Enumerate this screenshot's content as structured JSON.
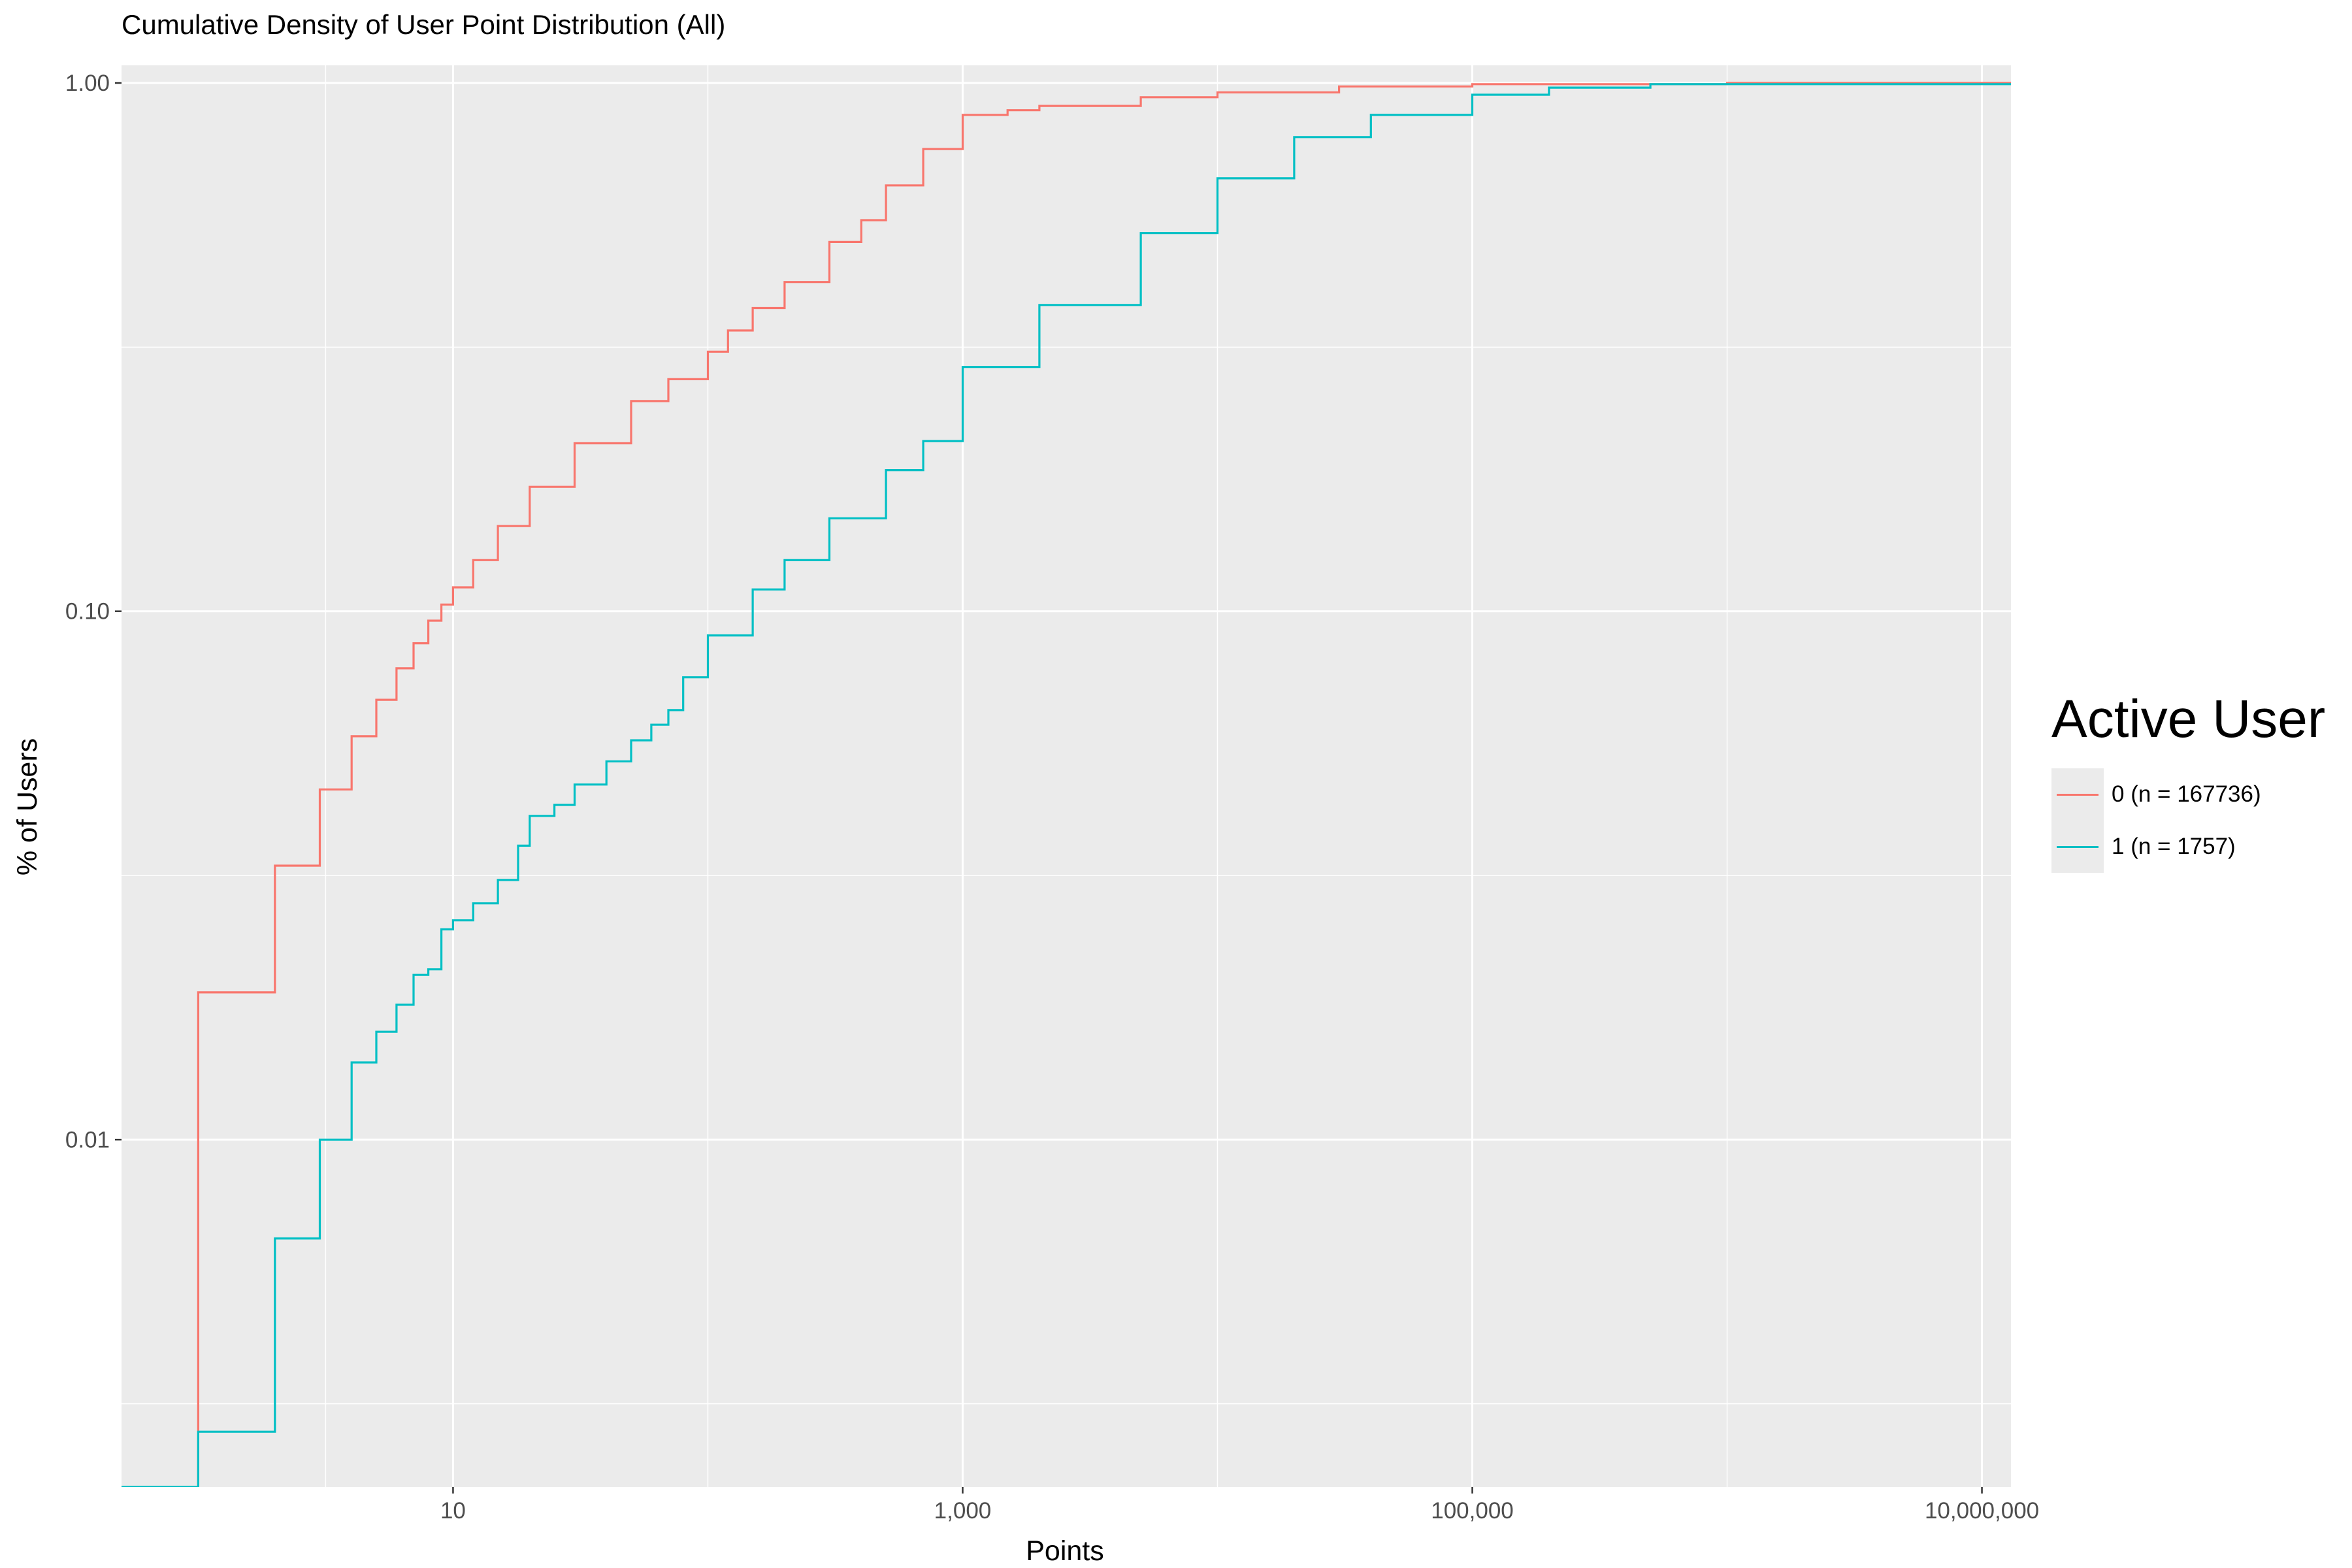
{
  "chart_data": {
    "type": "line",
    "title": "Cumulative Density of User Point Distribution (All)",
    "xlabel": "Points",
    "ylabel": "% of Users",
    "x_scale": "log10",
    "y_scale": "log10",
    "xlim": [
      0.5,
      13000000
    ],
    "ylim": [
      0.0022,
      1.08
    ],
    "x_ticks": [
      {
        "value": 10,
        "label": "10"
      },
      {
        "value": 1000,
        "label": "1,000"
      },
      {
        "value": 100000,
        "label": "100,000"
      },
      {
        "value": 10000000,
        "label": "10,000,000"
      }
    ],
    "y_ticks": [
      {
        "value": 0.01,
        "label": "0.01"
      },
      {
        "value": 0.1,
        "label": "0.10"
      },
      {
        "value": 1,
        "label": "1.00"
      }
    ],
    "grid": true,
    "legend": {
      "title": "Active User",
      "position": "right"
    },
    "series": [
      {
        "name": "0 (n = 167736)",
        "color": "#F8766D",
        "step": true,
        "points": [
          [
            1,
            0.0022
          ],
          [
            1,
            0.019
          ],
          [
            2,
            0.019
          ],
          [
            2,
            0.033
          ],
          [
            3,
            0.033
          ],
          [
            3,
            0.046
          ],
          [
            4,
            0.046
          ],
          [
            4,
            0.058
          ],
          [
            5,
            0.058
          ],
          [
            5,
            0.068
          ],
          [
            6,
            0.068
          ],
          [
            6,
            0.078
          ],
          [
            7,
            0.078
          ],
          [
            7,
            0.087
          ],
          [
            8,
            0.087
          ],
          [
            8,
            0.096
          ],
          [
            9,
            0.096
          ],
          [
            9,
            0.103
          ],
          [
            10,
            0.103
          ],
          [
            10,
            0.111
          ],
          [
            12,
            0.125
          ],
          [
            15,
            0.145
          ],
          [
            20,
            0.172
          ],
          [
            30,
            0.208
          ],
          [
            50,
            0.25
          ],
          [
            70,
            0.275
          ],
          [
            100,
            0.31
          ],
          [
            120,
            0.34
          ],
          [
            150,
            0.375
          ],
          [
            200,
            0.42
          ],
          [
            300,
            0.5
          ],
          [
            400,
            0.55
          ],
          [
            500,
            0.64
          ],
          [
            700,
            0.75
          ],
          [
            1000,
            0.87
          ],
          [
            1500,
            0.888
          ],
          [
            2000,
            0.905
          ],
          [
            5000,
            0.94
          ],
          [
            10000,
            0.96
          ],
          [
            30000,
            0.985
          ],
          [
            100000,
            0.995
          ],
          [
            1000000,
            1.0
          ],
          [
            13000000,
            1.0
          ]
        ]
      },
      {
        "name": "1 (n = 1757)",
        "color": "#00BFC4",
        "step": true,
        "points": [
          [
            0.5,
            0.0022
          ],
          [
            1,
            0.0022
          ],
          [
            1,
            0.0028
          ],
          [
            2,
            0.0028
          ],
          [
            2,
            0.0065
          ],
          [
            3,
            0.0065
          ],
          [
            3,
            0.01
          ],
          [
            4,
            0.01
          ],
          [
            4,
            0.014
          ],
          [
            5,
            0.014
          ],
          [
            5,
            0.016
          ],
          [
            6,
            0.016
          ],
          [
            6,
            0.018
          ],
          [
            7,
            0.018
          ],
          [
            7,
            0.0205
          ],
          [
            8,
            0.0205
          ],
          [
            8,
            0.021
          ],
          [
            9,
            0.021
          ],
          [
            9,
            0.025
          ],
          [
            10,
            0.025
          ],
          [
            10,
            0.026
          ],
          [
            12,
            0.028
          ],
          [
            15,
            0.031
          ],
          [
            18,
            0.036
          ],
          [
            20,
            0.041
          ],
          [
            25,
            0.043
          ],
          [
            30,
            0.047
          ],
          [
            40,
            0.052
          ],
          [
            50,
            0.057
          ],
          [
            60,
            0.061
          ],
          [
            70,
            0.065
          ],
          [
            80,
            0.075
          ],
          [
            100,
            0.09
          ],
          [
            150,
            0.11
          ],
          [
            200,
            0.125
          ],
          [
            300,
            0.15
          ],
          [
            500,
            0.185
          ],
          [
            700,
            0.21
          ],
          [
            1000,
            0.29
          ],
          [
            2000,
            0.38
          ],
          [
            5000,
            0.52
          ],
          [
            10000,
            0.66
          ],
          [
            20000,
            0.79
          ],
          [
            40000,
            0.87
          ],
          [
            100000,
            0.95
          ],
          [
            200000,
            0.98
          ],
          [
            500000,
            0.995
          ],
          [
            13000000,
            1.0
          ]
        ]
      }
    ]
  }
}
